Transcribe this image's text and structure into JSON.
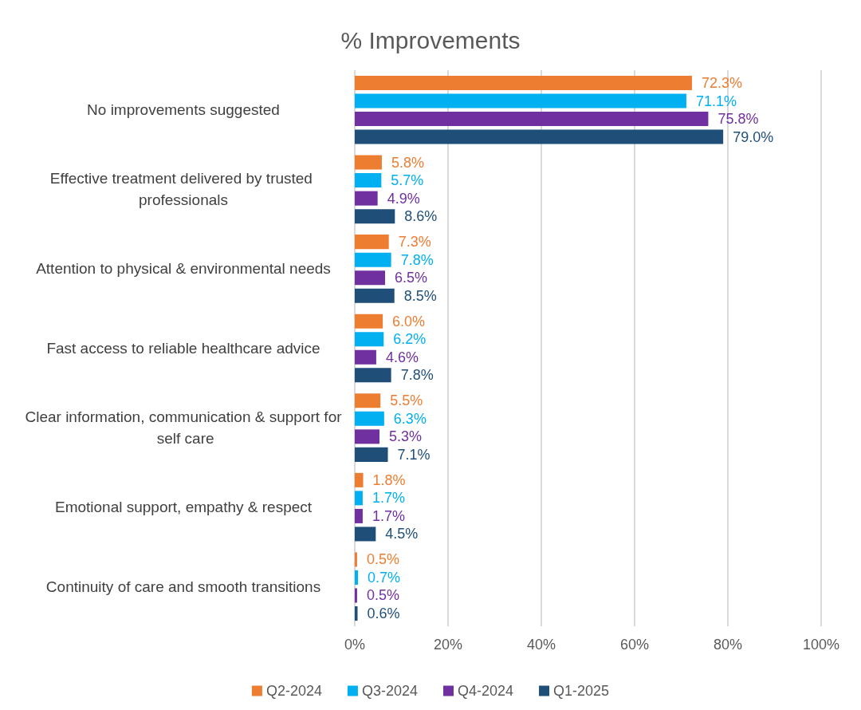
{
  "chart_data": {
    "type": "bar",
    "orientation": "horizontal",
    "title": "% Improvements",
    "categories": [
      "No improvements suggested",
      "Effective treatment delivered by trusted professionals",
      "Attention to physical & environmental needs",
      "Fast access to reliable healthcare advice",
      "Clear information, communication & support for self care",
      "Emotional support, empathy & respect",
      "Continuity of care and smooth transitions"
    ],
    "series": [
      {
        "name": "Q2-2024",
        "color": "#ed7d31",
        "values": [
          72.3,
          5.8,
          7.3,
          6.0,
          5.5,
          1.8,
          0.5
        ],
        "value_labels": [
          "72.3%",
          "5.8%",
          "7.3%",
          "6.0%",
          "5.5%",
          "1.8%",
          "0.5%"
        ]
      },
      {
        "name": "Q3-2024",
        "color": "#00b0f0",
        "values": [
          71.1,
          5.7,
          7.8,
          6.2,
          6.3,
          1.7,
          0.7
        ],
        "value_labels": [
          "71.1%",
          "5.7%",
          "7.8%",
          "6.2%",
          "6.3%",
          "1.7%",
          "0.7%"
        ]
      },
      {
        "name": "Q4-2024",
        "color": "#7030a0",
        "values": [
          75.8,
          4.9,
          6.5,
          4.6,
          5.3,
          1.7,
          0.5
        ],
        "value_labels": [
          "75.8%",
          "4.9%",
          "6.5%",
          "4.6%",
          "5.3%",
          "1.7%",
          "0.5%"
        ]
      },
      {
        "name": "Q1-2025",
        "color": "#1f4e79",
        "values": [
          79.0,
          8.6,
          8.5,
          7.8,
          7.1,
          4.5,
          0.6
        ],
        "value_labels": [
          "79.0%",
          "8.6%",
          "8.5%",
          "7.8%",
          "7.1%",
          "4.5%",
          "0.6%"
        ]
      }
    ],
    "xlim": [
      0,
      100
    ],
    "xticks": [
      {
        "value": 0,
        "label": "0%"
      },
      {
        "value": 20,
        "label": "20%"
      },
      {
        "value": 40,
        "label": "40%"
      },
      {
        "value": 60,
        "label": "60%"
      },
      {
        "value": 80,
        "label": "80%"
      },
      {
        "value": 100,
        "label": "100%"
      }
    ],
    "grid": "x",
    "legend": "bottom"
  }
}
